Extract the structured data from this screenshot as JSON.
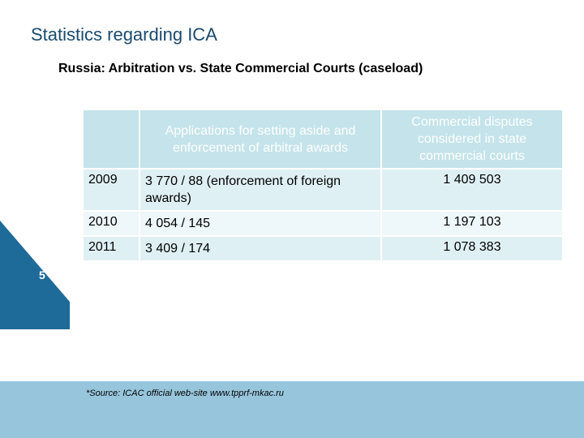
{
  "slide": {
    "title": "Statistics regarding ICA",
    "subtitle": "Russia: Arbitration vs. State Commercial Courts (caseload)",
    "page_number": "5",
    "source_note": "*Source: ICAC official web-site www.tpprf-mkac.ru"
  },
  "table": {
    "headers": [
      "",
      "Applications for setting aside and enforcement of  arbitral awards",
      "Commercial disputes considered in state commercial courts"
    ],
    "rows": [
      {
        "year": "2009",
        "applications": "3 770 / 88 (enforcement of foreign awards)",
        "commercial": "1 409 503"
      },
      {
        "year": "2010",
        "applications": "4 054 / 145",
        "commercial": "1 197 103"
      },
      {
        "year": "2011",
        "applications": "3 409 / 174",
        "commercial": "1 078 383"
      }
    ]
  },
  "colors": {
    "title": "#1a4a6e",
    "header_fill": "#c4e3ea",
    "row_fill_a": "#dff0f4",
    "row_fill_b": "#eef7f9",
    "side_dark": "#1e6b9a",
    "side_light": "#3a8fc0",
    "footer_band": "#97c6dc"
  }
}
